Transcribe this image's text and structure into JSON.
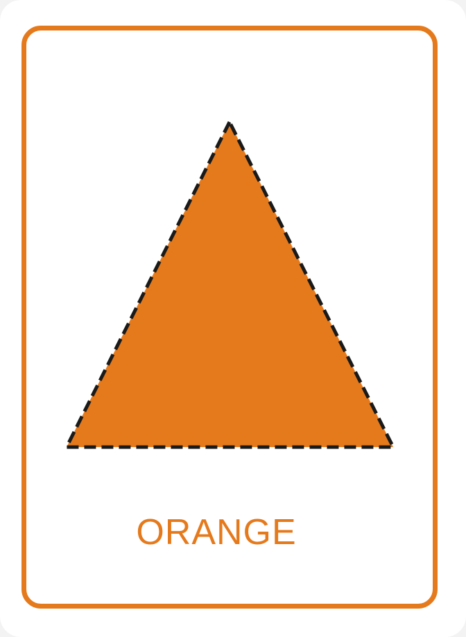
{
  "card": {
    "label": "ORANGE",
    "shape_name": "triangle",
    "colors": {
      "accent": "#e57a1c",
      "fill": "#e57a1c",
      "outline": "#1a1a1a",
      "background": "#ffffff"
    }
  }
}
